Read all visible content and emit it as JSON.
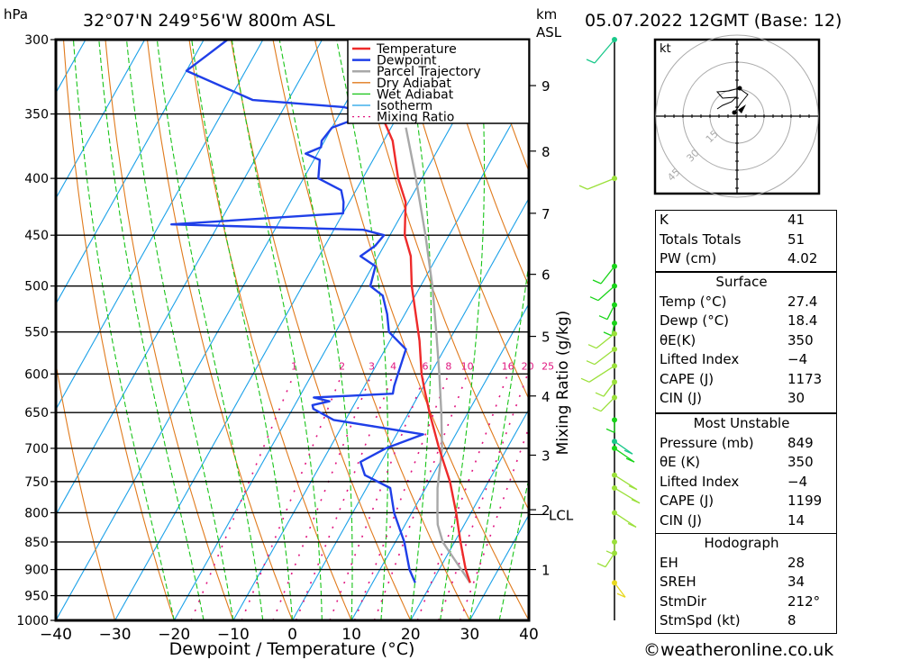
{
  "header": {
    "y_unit": "hPa",
    "location": "32°07'N 249°56'W 800m ASL",
    "km_unit": "km",
    "asl": "ASL",
    "datetime": "05.07.2022 12GMT (Base: 12)"
  },
  "chart_data": {
    "type": "line",
    "title": "32°07'N 249°56'W 800m ASL",
    "xlabel": "Dewpoint / Temperature (°C)",
    "ylabel": "hPa",
    "y2label": "Mixing Ratio (g/kg)",
    "xlim": [
      -40,
      40
    ],
    "ylim": [
      1000,
      300
    ],
    "x_ticks": [
      "−40",
      "−30",
      "−20",
      "−10",
      "0",
      "10",
      "20",
      "30",
      "40"
    ],
    "pressure_ticks": [
      300,
      350,
      400,
      450,
      500,
      550,
      600,
      650,
      700,
      750,
      800,
      850,
      900,
      950,
      1000
    ],
    "km_ticks": [
      {
        "label": "1",
        "p": 900
      },
      {
        "label": "2",
        "p": 795
      },
      {
        "label": "3",
        "p": 710
      },
      {
        "label": "4",
        "p": 628
      },
      {
        "label": "5",
        "p": 555
      },
      {
        "label": "6",
        "p": 488
      },
      {
        "label": "7",
        "p": 430
      },
      {
        "label": "8",
        "p": 378
      },
      {
        "label": "9",
        "p": 330
      }
    ],
    "lcl_label": "LCL",
    "lcl_pressure": 803,
    "mixing_ratio_labels": [
      "1",
      "2",
      "3",
      "4",
      "6",
      "8",
      "10",
      "16",
      "20",
      "25"
    ],
    "mixing_ratio_values": [
      1,
      2,
      3,
      4,
      6,
      8,
      10,
      16,
      20,
      25
    ],
    "legend": {
      "position": "top-right",
      "entries": [
        {
          "label": "Temperature",
          "color": "#ee2a2a",
          "style": "solid"
        },
        {
          "label": "Dewpoint",
          "color": "#1f3fe8",
          "style": "solid"
        },
        {
          "label": "Parcel Trajectory",
          "color": "#a8a8a8",
          "style": "solid"
        },
        {
          "label": "Dry Adiabat",
          "color": "#e07a1c",
          "style": "solid"
        },
        {
          "label": "Wet Adiabat",
          "color": "#18c418",
          "style": "dashed"
        },
        {
          "label": "Isotherm",
          "color": "#1ba1e8",
          "style": "solid"
        },
        {
          "label": "Mixing Ratio",
          "color": "#e0157f",
          "style": "dotted"
        }
      ]
    },
    "series": [
      {
        "name": "Temperature",
        "color": "#ee2a2a",
        "p": [
          925,
          900,
          850,
          800,
          750,
          700,
          650,
          620,
          600,
          560,
          500,
          470,
          450,
          420,
          400,
          370,
          350,
          340,
          320,
          300
        ],
        "t": [
          26.5,
          24.5,
          21.0,
          17.5,
          13.5,
          8.5,
          3.5,
          0.5,
          -1.5,
          -5.0,
          -11.5,
          -14.5,
          -17.5,
          -20.5,
          -24.0,
          -28.5,
          -33.0,
          -34.5,
          -38.0,
          -41.5
        ]
      },
      {
        "name": "Dewpoint",
        "color": "#1f3fe8",
        "p": [
          925,
          900,
          850,
          800,
          760,
          740,
          720,
          700,
          680,
          660,
          645,
          640,
          635,
          630,
          625,
          615,
          600,
          570,
          550,
          530,
          510,
          500,
          480,
          470,
          460,
          450,
          445,
          440,
          430,
          420,
          410,
          400,
          385,
          380,
          375,
          370,
          360,
          350,
          345,
          340,
          320,
          310,
          300
        ],
        "t": [
          17.2,
          15.0,
          11.5,
          7.0,
          4.0,
          -1.5,
          -3.5,
          -0.5,
          4.5,
          -12.0,
          -16.5,
          -17.0,
          -14.5,
          -17.5,
          -4.5,
          -5.0,
          -5.5,
          -6.5,
          -11.0,
          -13.0,
          -15.5,
          -18.5,
          -19.5,
          -23.0,
          -21.5,
          -21.0,
          -25.0,
          -58.0,
          -30.0,
          -31.0,
          -32.5,
          -37.5,
          -39.0,
          -42.0,
          -40.0,
          -40.5,
          -40.0,
          -35.0,
          -40.0,
          -56.0,
          -70.0,
          -68.0,
          -66.0
        ]
      },
      {
        "name": "Parcel Trajectory",
        "color": "#a8a8a8",
        "p": [
          925,
          880,
          850,
          820,
          803,
          760,
          700,
          650,
          600,
          550,
          500,
          450,
          400,
          360
        ],
        "t": [
          26.5,
          21.5,
          18.0,
          15.5,
          14.5,
          12.0,
          9.0,
          5.5,
          1.5,
          -3.0,
          -8.0,
          -14.0,
          -21.0,
          -27.5
        ]
      }
    ]
  },
  "wind_profile": {
    "label": "wind barbs by level",
    "colors": [
      "#19c88a",
      "#9be03a",
      "#18d418",
      "#e8d81e"
    ]
  },
  "hodograph": {
    "unit_label": "kt",
    "ring_labels": [
      "15",
      "30",
      "45"
    ],
    "ring_values": [
      15,
      30,
      45
    ]
  },
  "indices": {
    "general": [
      {
        "label": "K",
        "value": "41"
      },
      {
        "label": "Totals Totals",
        "value": "51"
      },
      {
        "label": "PW (cm)",
        "value": "4.02"
      }
    ],
    "surface": {
      "title": "Surface",
      "rows": [
        {
          "label": "Temp (°C)",
          "value": "27.4"
        },
        {
          "label": "Dewp (°C)",
          "value": "18.4"
        },
        {
          "label": "θE(K)",
          "value": "350"
        },
        {
          "label": "Lifted Index",
          "value": "−4"
        },
        {
          "label": "CAPE (J)",
          "value": "1173"
        },
        {
          "label": "CIN (J)",
          "value": "30"
        }
      ]
    },
    "most_unstable": {
      "title": "Most Unstable",
      "rows": [
        {
          "label": "Pressure (mb)",
          "value": "849"
        },
        {
          "label": "θE (K)",
          "value": "350"
        },
        {
          "label": "Lifted Index",
          "value": "−4"
        },
        {
          "label": "CAPE (J)",
          "value": "1199"
        },
        {
          "label": "CIN (J)",
          "value": "14"
        }
      ]
    },
    "hodograph": {
      "title": "Hodograph",
      "rows": [
        {
          "label": "EH",
          "value": "28"
        },
        {
          "label": "SREH",
          "value": "34"
        },
        {
          "label": "StmDir",
          "value": "212°"
        },
        {
          "label": "StmSpd (kt)",
          "value": "8"
        }
      ]
    }
  },
  "footer": {
    "copyright": "©weatheronline.co.uk"
  }
}
